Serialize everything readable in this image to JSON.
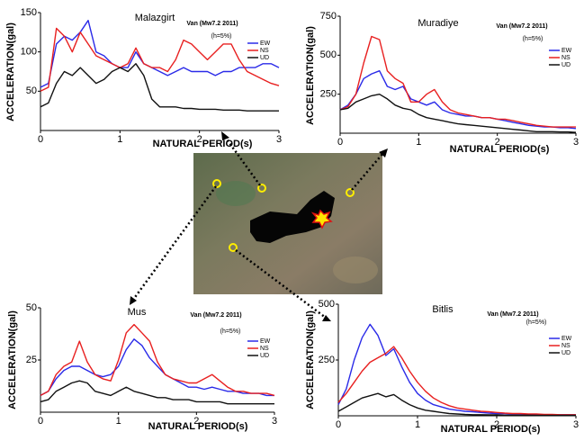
{
  "chart_data": [
    {
      "type": "line",
      "title": "Malazgirt",
      "subtitle": "Van (Mw7.2 2011)",
      "annotation": "(h=5%)",
      "xlabel": "NATURAL PERIOD(s)",
      "ylabel": "ACCELERATION(gal)",
      "x": [
        0,
        0.1,
        0.2,
        0.3,
        0.4,
        0.5,
        0.6,
        0.7,
        0.8,
        0.9,
        1,
        1.1,
        1.2,
        1.3,
        1.4,
        1.5,
        1.6,
        1.7,
        1.8,
        1.9,
        2,
        2.1,
        2.2,
        2.3,
        2.4,
        2.5,
        2.6,
        2.7,
        2.8,
        2.9,
        3
      ],
      "xlim": [
        0,
        3
      ],
      "xticks": [
        0,
        1,
        2,
        3
      ],
      "ylim": [
        0,
        150
      ],
      "yticks": [
        50,
        100,
        150
      ],
      "grid": false,
      "series": [
        {
          "name": "EW",
          "color": "#2a2ae8",
          "values": [
            55,
            60,
            110,
            120,
            115,
            125,
            140,
            100,
            95,
            85,
            80,
            80,
            100,
            85,
            80,
            75,
            70,
            75,
            80,
            75,
            75,
            75,
            70,
            75,
            75,
            80,
            80,
            80,
            85,
            85,
            80
          ]
        },
        {
          "name": "NS",
          "color": "#e82020",
          "values": [
            50,
            55,
            130,
            120,
            100,
            125,
            110,
            95,
            90,
            85,
            80,
            85,
            105,
            85,
            80,
            80,
            75,
            90,
            115,
            110,
            100,
            90,
            100,
            110,
            110,
            90,
            75,
            70,
            65,
            60,
            57
          ]
        },
        {
          "name": "UD",
          "color": "#111111",
          "values": [
            30,
            35,
            60,
            75,
            70,
            80,
            70,
            60,
            65,
            75,
            80,
            75,
            85,
            70,
            40,
            30,
            30,
            30,
            28,
            28,
            27,
            27,
            27,
            26,
            26,
            26,
            25,
            25,
            25,
            25,
            25
          ]
        }
      ]
    },
    {
      "type": "line",
      "title": "Muradiye",
      "subtitle": "Van (Mw7.2 2011)",
      "annotation": "(h=5%)",
      "xlabel": "NATURAL PERIOD(s)",
      "ylabel": "ACCELERATION(gal)",
      "x": [
        0,
        0.1,
        0.2,
        0.3,
        0.4,
        0.5,
        0.6,
        0.7,
        0.8,
        0.9,
        1,
        1.1,
        1.2,
        1.3,
        1.4,
        1.5,
        1.6,
        1.7,
        1.8,
        1.9,
        2,
        2.1,
        2.2,
        2.3,
        2.4,
        2.5,
        2.6,
        2.7,
        2.8,
        2.9,
        3
      ],
      "xlim": [
        0,
        3
      ],
      "xticks": [
        0,
        1,
        2,
        3
      ],
      "ylim": [
        0,
        750
      ],
      "yticks": [
        250,
        500,
        750
      ],
      "grid": false,
      "series": [
        {
          "name": "EW",
          "color": "#2a2ae8",
          "values": [
            150,
            180,
            250,
            350,
            380,
            400,
            300,
            280,
            300,
            220,
            200,
            180,
            200,
            150,
            130,
            120,
            110,
            110,
            100,
            100,
            90,
            80,
            70,
            60,
            50,
            45,
            40,
            40,
            35,
            35,
            30
          ]
        },
        {
          "name": "NS",
          "color": "#e82020",
          "values": [
            150,
            170,
            250,
            450,
            620,
            600,
            400,
            350,
            320,
            200,
            200,
            250,
            280,
            200,
            150,
            130,
            120,
            110,
            100,
            100,
            90,
            90,
            80,
            70,
            60,
            50,
            45,
            40,
            40,
            40,
            40
          ]
        },
        {
          "name": "UD",
          "color": "#111111",
          "values": [
            150,
            160,
            200,
            220,
            240,
            250,
            220,
            180,
            160,
            150,
            120,
            100,
            90,
            80,
            70,
            60,
            55,
            50,
            45,
            40,
            35,
            30,
            25,
            20,
            15,
            10,
            10,
            10,
            8,
            8,
            5
          ]
        }
      ]
    },
    {
      "type": "line",
      "title": "Mus",
      "subtitle": "Van (Mw7.2 2011)",
      "annotation": "(h=5%)",
      "xlabel": "NATURAL PERIOD(s)",
      "ylabel": "ACCELERATION(gal)",
      "x": [
        0,
        0.1,
        0.2,
        0.3,
        0.4,
        0.5,
        0.6,
        0.7,
        0.8,
        0.9,
        1,
        1.1,
        1.2,
        1.3,
        1.4,
        1.5,
        1.6,
        1.7,
        1.8,
        1.9,
        2,
        2.1,
        2.2,
        2.3,
        2.4,
        2.5,
        2.6,
        2.7,
        2.8,
        2.9,
        3
      ],
      "xlim": [
        0,
        3
      ],
      "xticks": [
        0,
        1,
        2,
        3
      ],
      "ylim": [
        0,
        50
      ],
      "yticks": [
        25,
        50
      ],
      "grid": false,
      "series": [
        {
          "name": "EW",
          "color": "#2a2ae8",
          "values": [
            8,
            10,
            16,
            20,
            22,
            22,
            20,
            18,
            17,
            18,
            22,
            30,
            35,
            32,
            26,
            22,
            18,
            16,
            14,
            12,
            12,
            11,
            12,
            11,
            10,
            10,
            9,
            9,
            9,
            8,
            8
          ]
        },
        {
          "name": "NS",
          "color": "#e82020",
          "values": [
            8,
            10,
            18,
            22,
            24,
            34,
            24,
            18,
            16,
            15,
            25,
            38,
            42,
            38,
            34,
            24,
            18,
            16,
            15,
            14,
            14,
            16,
            18,
            15,
            12,
            10,
            10,
            9,
            9,
            9,
            8
          ]
        },
        {
          "name": "UD",
          "color": "#111111",
          "values": [
            5,
            6,
            10,
            12,
            14,
            15,
            14,
            10,
            9,
            8,
            10,
            12,
            10,
            9,
            8,
            7,
            7,
            6,
            6,
            6,
            5,
            5,
            5,
            5,
            4,
            4,
            4,
            4,
            4,
            4,
            4
          ]
        }
      ]
    },
    {
      "type": "line",
      "title": "Bitlis",
      "subtitle": "Van (Mw7.2 2011)",
      "annotation": "(h=5%)",
      "xlabel": "NATURAL PERIOD(s)",
      "ylabel": "ACCELERATION(gal)",
      "x": [
        0,
        0.1,
        0.2,
        0.3,
        0.4,
        0.5,
        0.6,
        0.7,
        0.8,
        0.9,
        1,
        1.1,
        1.2,
        1.3,
        1.4,
        1.5,
        1.6,
        1.7,
        1.8,
        1.9,
        2,
        2.1,
        2.2,
        2.3,
        2.4,
        2.5,
        2.6,
        2.7,
        2.8,
        2.9,
        3
      ],
      "xlim": [
        0,
        3
      ],
      "xticks": [
        0,
        1,
        2,
        3
      ],
      "ylim": [
        0,
        500
      ],
      "yticks": [
        250,
        500
      ],
      "grid": false,
      "series": [
        {
          "name": "EW",
          "color": "#2a2ae8",
          "values": [
            50,
            120,
            250,
            350,
            410,
            360,
            270,
            300,
            220,
            150,
            100,
            70,
            50,
            40,
            30,
            25,
            20,
            18,
            15,
            12,
            10,
            10,
            8,
            8,
            6,
            6,
            5,
            5,
            5,
            5,
            5
          ]
        },
        {
          "name": "NS",
          "color": "#e82020",
          "values": [
            60,
            100,
            150,
            200,
            240,
            260,
            280,
            310,
            260,
            200,
            150,
            110,
            80,
            60,
            45,
            35,
            30,
            25,
            20,
            18,
            15,
            12,
            10,
            10,
            8,
            8,
            6,
            6,
            5,
            5,
            5
          ]
        },
        {
          "name": "UD",
          "color": "#111111",
          "values": [
            20,
            40,
            60,
            80,
            90,
            100,
            85,
            95,
            70,
            50,
            35,
            25,
            20,
            15,
            10,
            8,
            6,
            5,
            5,
            4,
            4,
            3,
            3,
            3,
            3,
            2,
            2,
            2,
            2,
            2,
            2
          ]
        }
      ]
    }
  ]
}
